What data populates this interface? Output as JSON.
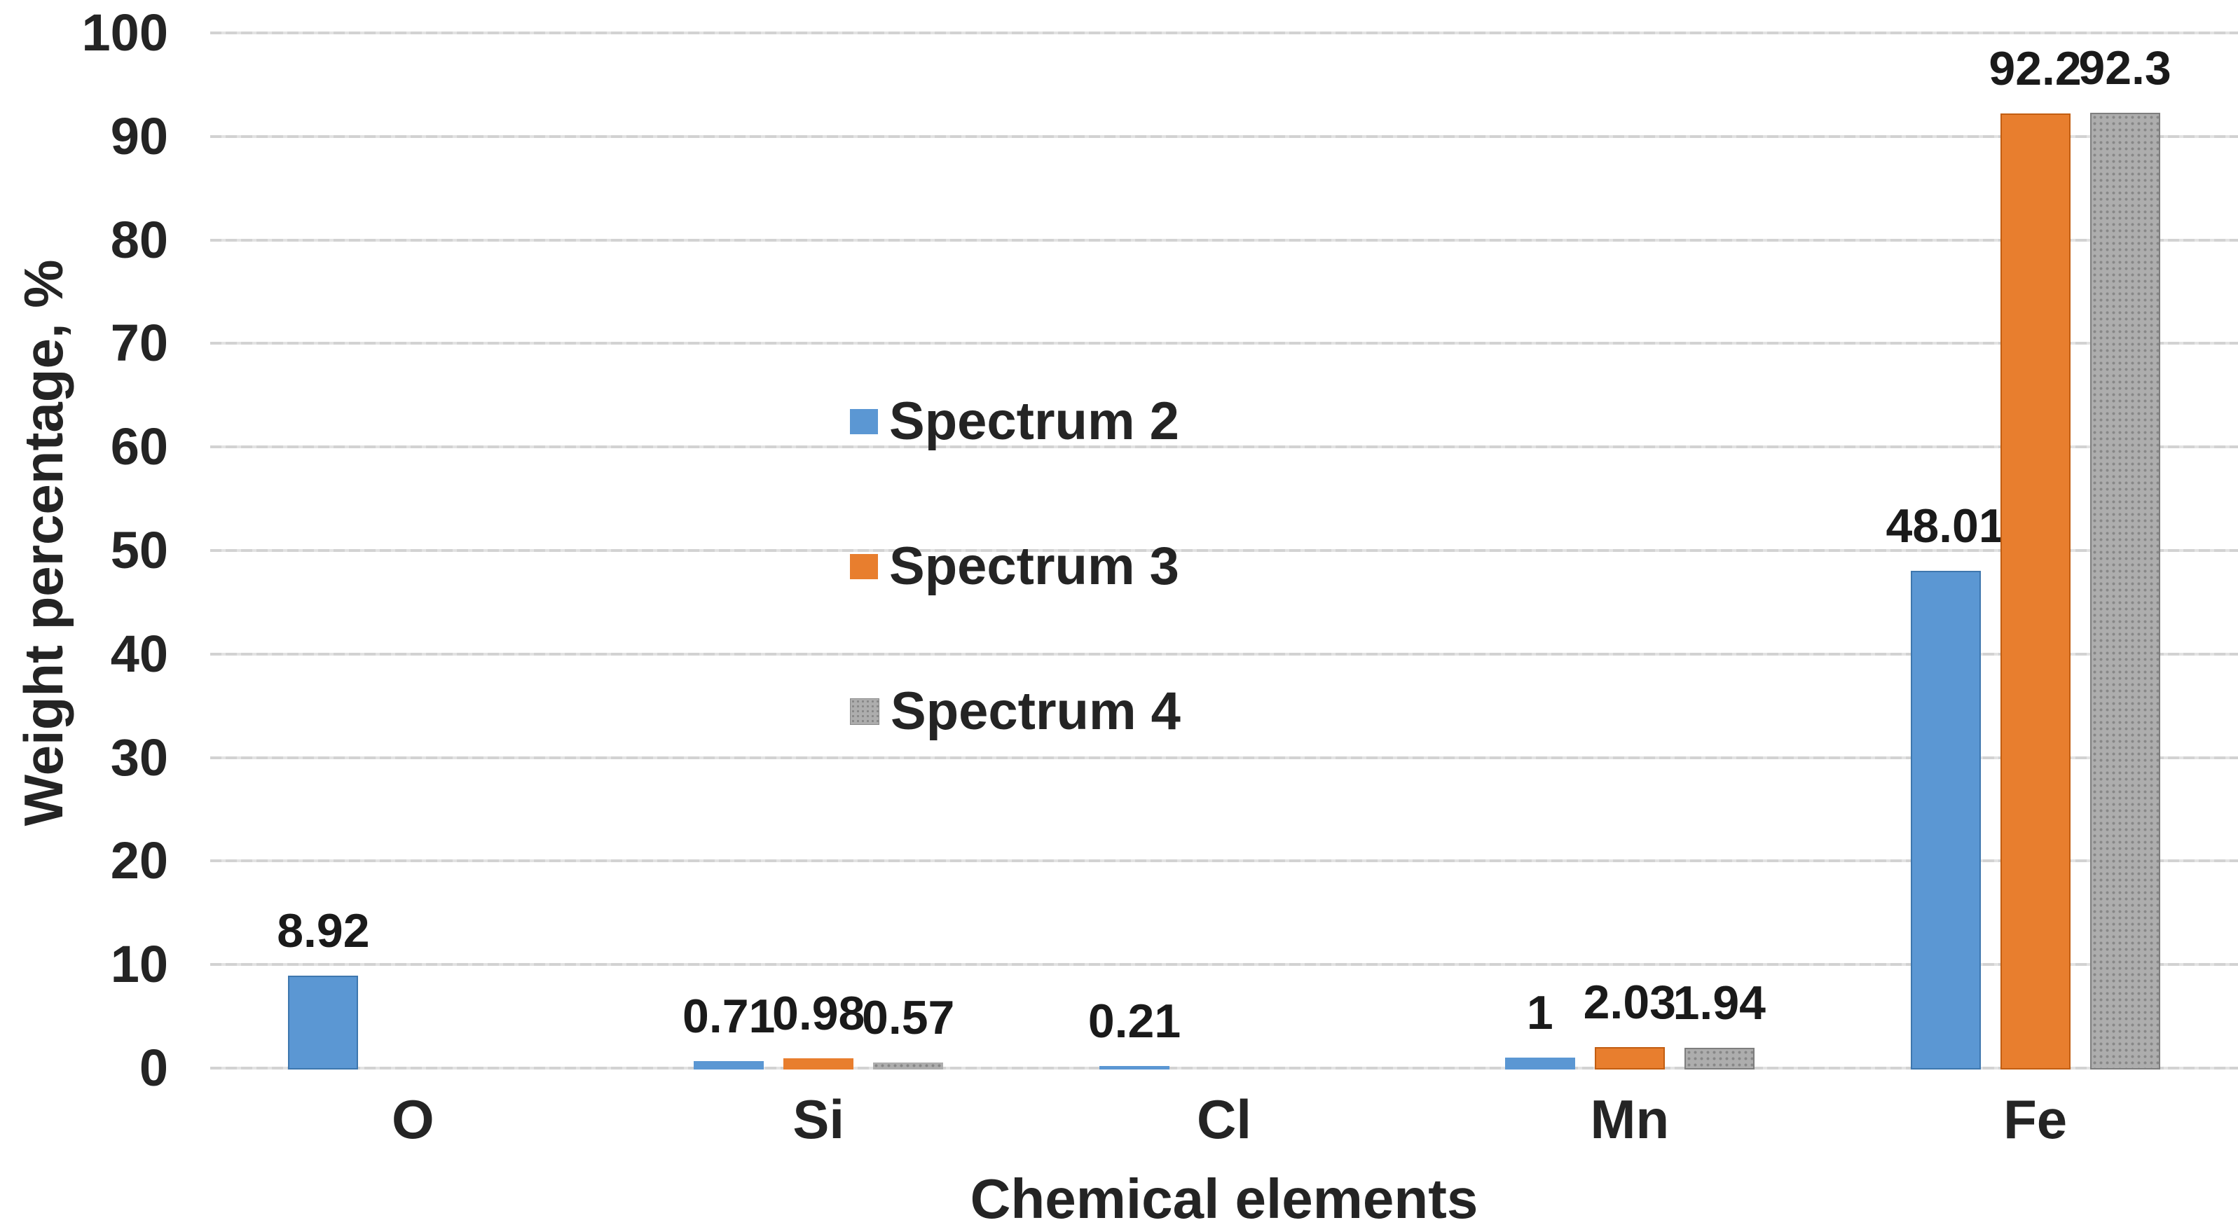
{
  "chart_data": {
    "type": "bar",
    "title": "",
    "xlabel": "Chemical elements",
    "ylabel": "Weight percentage, %",
    "categories": [
      "O",
      "Si",
      "Cl",
      "Mn",
      "Fe"
    ],
    "series": [
      {
        "name": "Spectrum 2",
        "color": "#5b97d3",
        "values": [
          8.92,
          0.71,
          0.21,
          1,
          48.01
        ],
        "value_labels": [
          "8.92",
          "0.71",
          "0.21",
          "1",
          "48.01"
        ]
      },
      {
        "name": "Spectrum 3",
        "color": "#e87e2e",
        "values": [
          0,
          0.98,
          0,
          2.03,
          92.2
        ],
        "value_labels": [
          "",
          "0.98",
          "",
          "2.03",
          "92.2"
        ]
      },
      {
        "name": "Spectrum 4",
        "color": "#adadad",
        "pattern": "dots",
        "values": [
          0,
          0.57,
          0,
          1.94,
          92.3
        ],
        "value_labels": [
          "",
          "0.57",
          "",
          "1.94",
          "92.3"
        ]
      }
    ],
    "ylim": [
      0,
      100
    ],
    "ytick_step": 10,
    "grid": true,
    "gridline_color": "#d2d2d2",
    "legend_position": "inside-left-vertical",
    "background": "#ffffff"
  }
}
